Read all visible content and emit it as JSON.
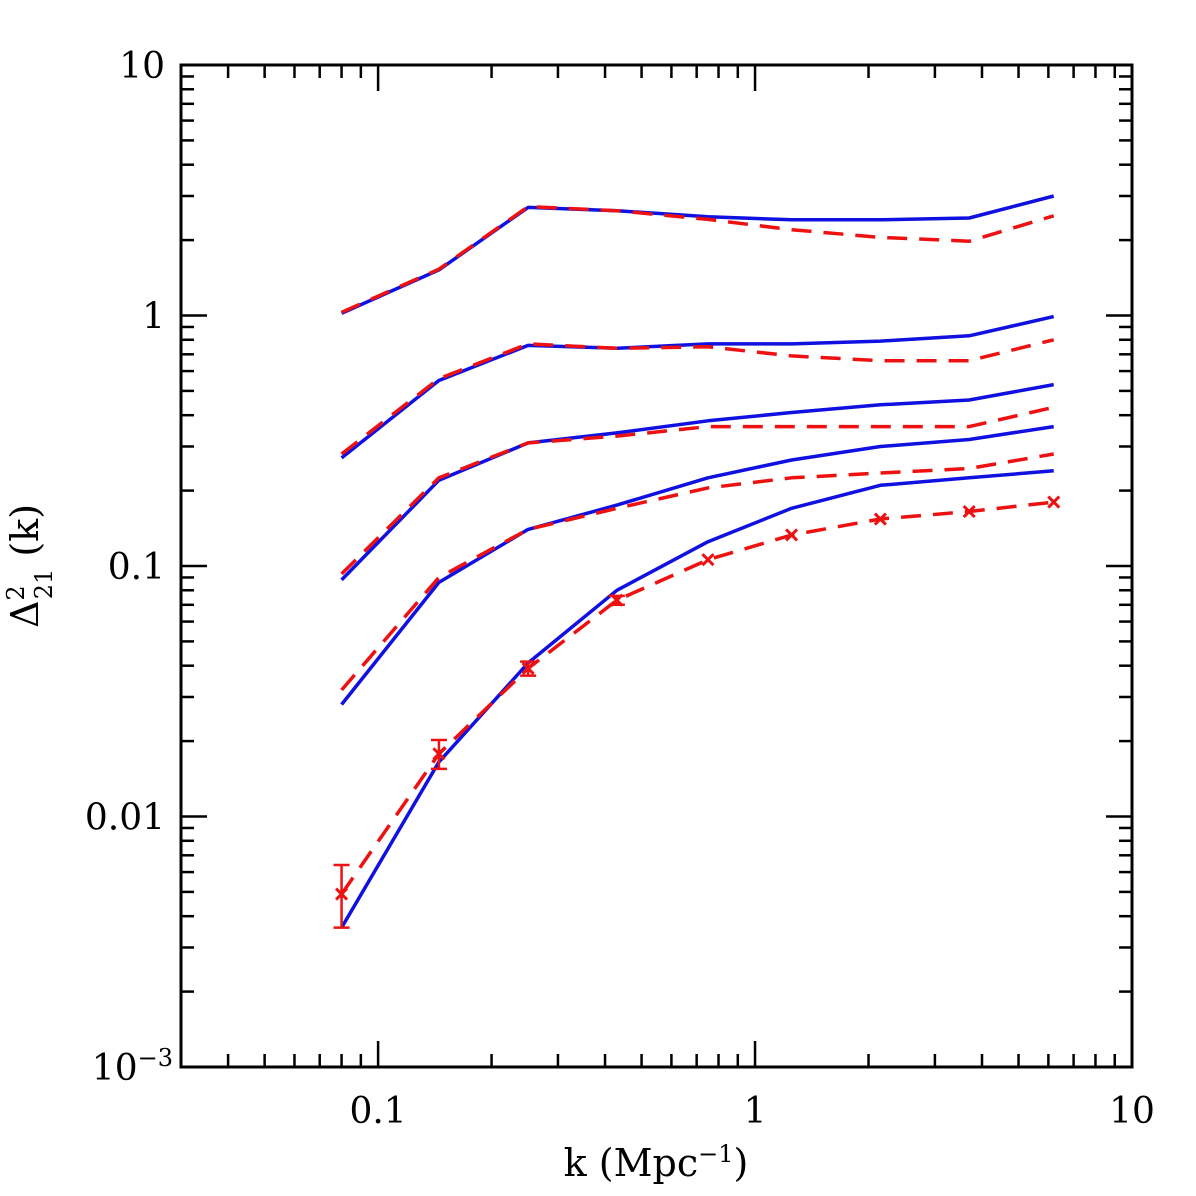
{
  "chart_data": {
    "type": "line",
    "xscale": "log",
    "yscale": "log",
    "xlim": [
      0.03,
      10
    ],
    "ylim": [
      0.001,
      10
    ],
    "grid": false,
    "legend": "none",
    "xlabel": {
      "main": "k  (Mpc",
      "sup": "−1",
      "close": ")"
    },
    "ylabel": {
      "base": "Δ",
      "sup": "2",
      "sub": "21",
      "arg": " (k)"
    },
    "x_tick_labels": [
      {
        "value": 0.1,
        "label": "0.1"
      },
      {
        "value": 1,
        "label": "1"
      },
      {
        "value": 10,
        "label": "10"
      }
    ],
    "y_tick_labels": [
      {
        "value": 10,
        "label": "10",
        "sup": ""
      },
      {
        "value": 1,
        "label": "1",
        "sup": ""
      },
      {
        "value": 0.1,
        "label": "0.1",
        "sup": ""
      },
      {
        "value": 0.01,
        "label": "0.01",
        "sup": ""
      },
      {
        "value": 0.001,
        "label": "10",
        "sup": "−3"
      }
    ],
    "colors": {
      "solid": "#1010e0",
      "dashed": "#ee1111",
      "axis": "#000000"
    },
    "series": [
      {
        "style": "solid",
        "x": [
          0.08,
          0.145,
          0.25,
          0.43,
          0.75,
          1.25,
          2.15,
          3.7,
          6.2
        ],
        "y": [
          1.02,
          1.52,
          2.7,
          2.62,
          2.48,
          2.41,
          2.41,
          2.45,
          3.0
        ]
      },
      {
        "style": "dashed",
        "x": [
          0.08,
          0.145,
          0.25,
          0.43,
          0.75,
          1.25,
          2.15,
          3.7,
          6.2
        ],
        "y": [
          1.03,
          1.53,
          2.72,
          2.62,
          2.42,
          2.2,
          2.05,
          1.98,
          2.5
        ]
      },
      {
        "style": "solid",
        "x": [
          0.08,
          0.145,
          0.25,
          0.43,
          0.75,
          1.25,
          2.15,
          3.7,
          6.2
        ],
        "y": [
          0.27,
          0.55,
          0.76,
          0.74,
          0.77,
          0.77,
          0.79,
          0.83,
          0.99
        ]
      },
      {
        "style": "dashed",
        "x": [
          0.08,
          0.145,
          0.25,
          0.43,
          0.75,
          1.25,
          2.15,
          3.7,
          6.2
        ],
        "y": [
          0.28,
          0.56,
          0.77,
          0.74,
          0.75,
          0.69,
          0.66,
          0.66,
          0.8
        ]
      },
      {
        "style": "solid",
        "x": [
          0.08,
          0.145,
          0.25,
          0.43,
          0.75,
          1.25,
          2.15,
          3.7,
          6.2
        ],
        "y": [
          0.088,
          0.22,
          0.31,
          0.34,
          0.38,
          0.41,
          0.44,
          0.46,
          0.53
        ]
      },
      {
        "style": "dashed",
        "x": [
          0.08,
          0.145,
          0.25,
          0.43,
          0.75,
          1.25,
          2.15,
          3.7,
          6.2
        ],
        "y": [
          0.093,
          0.225,
          0.31,
          0.33,
          0.36,
          0.36,
          0.36,
          0.36,
          0.43
        ]
      },
      {
        "style": "solid",
        "x": [
          0.08,
          0.145,
          0.25,
          0.43,
          0.75,
          1.25,
          2.15,
          3.7,
          6.2
        ],
        "y": [
          0.028,
          0.086,
          0.14,
          0.175,
          0.225,
          0.265,
          0.3,
          0.32,
          0.36
        ]
      },
      {
        "style": "dashed",
        "x": [
          0.08,
          0.145,
          0.25,
          0.43,
          0.75,
          1.25,
          2.15,
          3.7,
          6.2
        ],
        "y": [
          0.032,
          0.09,
          0.14,
          0.17,
          0.205,
          0.225,
          0.235,
          0.245,
          0.28
        ]
      },
      {
        "style": "solid",
        "x": [
          0.08,
          0.145,
          0.25,
          0.43,
          0.75,
          1.25,
          2.15,
          3.7,
          6.2
        ],
        "y": [
          0.0036,
          0.0165,
          0.041,
          0.08,
          0.125,
          0.17,
          0.21,
          0.225,
          0.24
        ]
      },
      {
        "style": "dashed",
        "markers": true,
        "x": [
          0.08,
          0.145,
          0.25,
          0.43,
          0.75,
          1.25,
          2.15,
          3.7,
          6.2
        ],
        "y": [
          0.0049,
          0.0178,
          0.039,
          0.073,
          0.106,
          0.133,
          0.154,
          0.165,
          0.18
        ],
        "err_low": [
          0.0036,
          0.0155,
          0.0365,
          0.07,
          0.104,
          0.131,
          0.152,
          0.163,
          0.178
        ],
        "err_high": [
          0.0064,
          0.0202,
          0.0415,
          0.076,
          0.108,
          0.135,
          0.156,
          0.167,
          0.182
        ]
      }
    ]
  }
}
